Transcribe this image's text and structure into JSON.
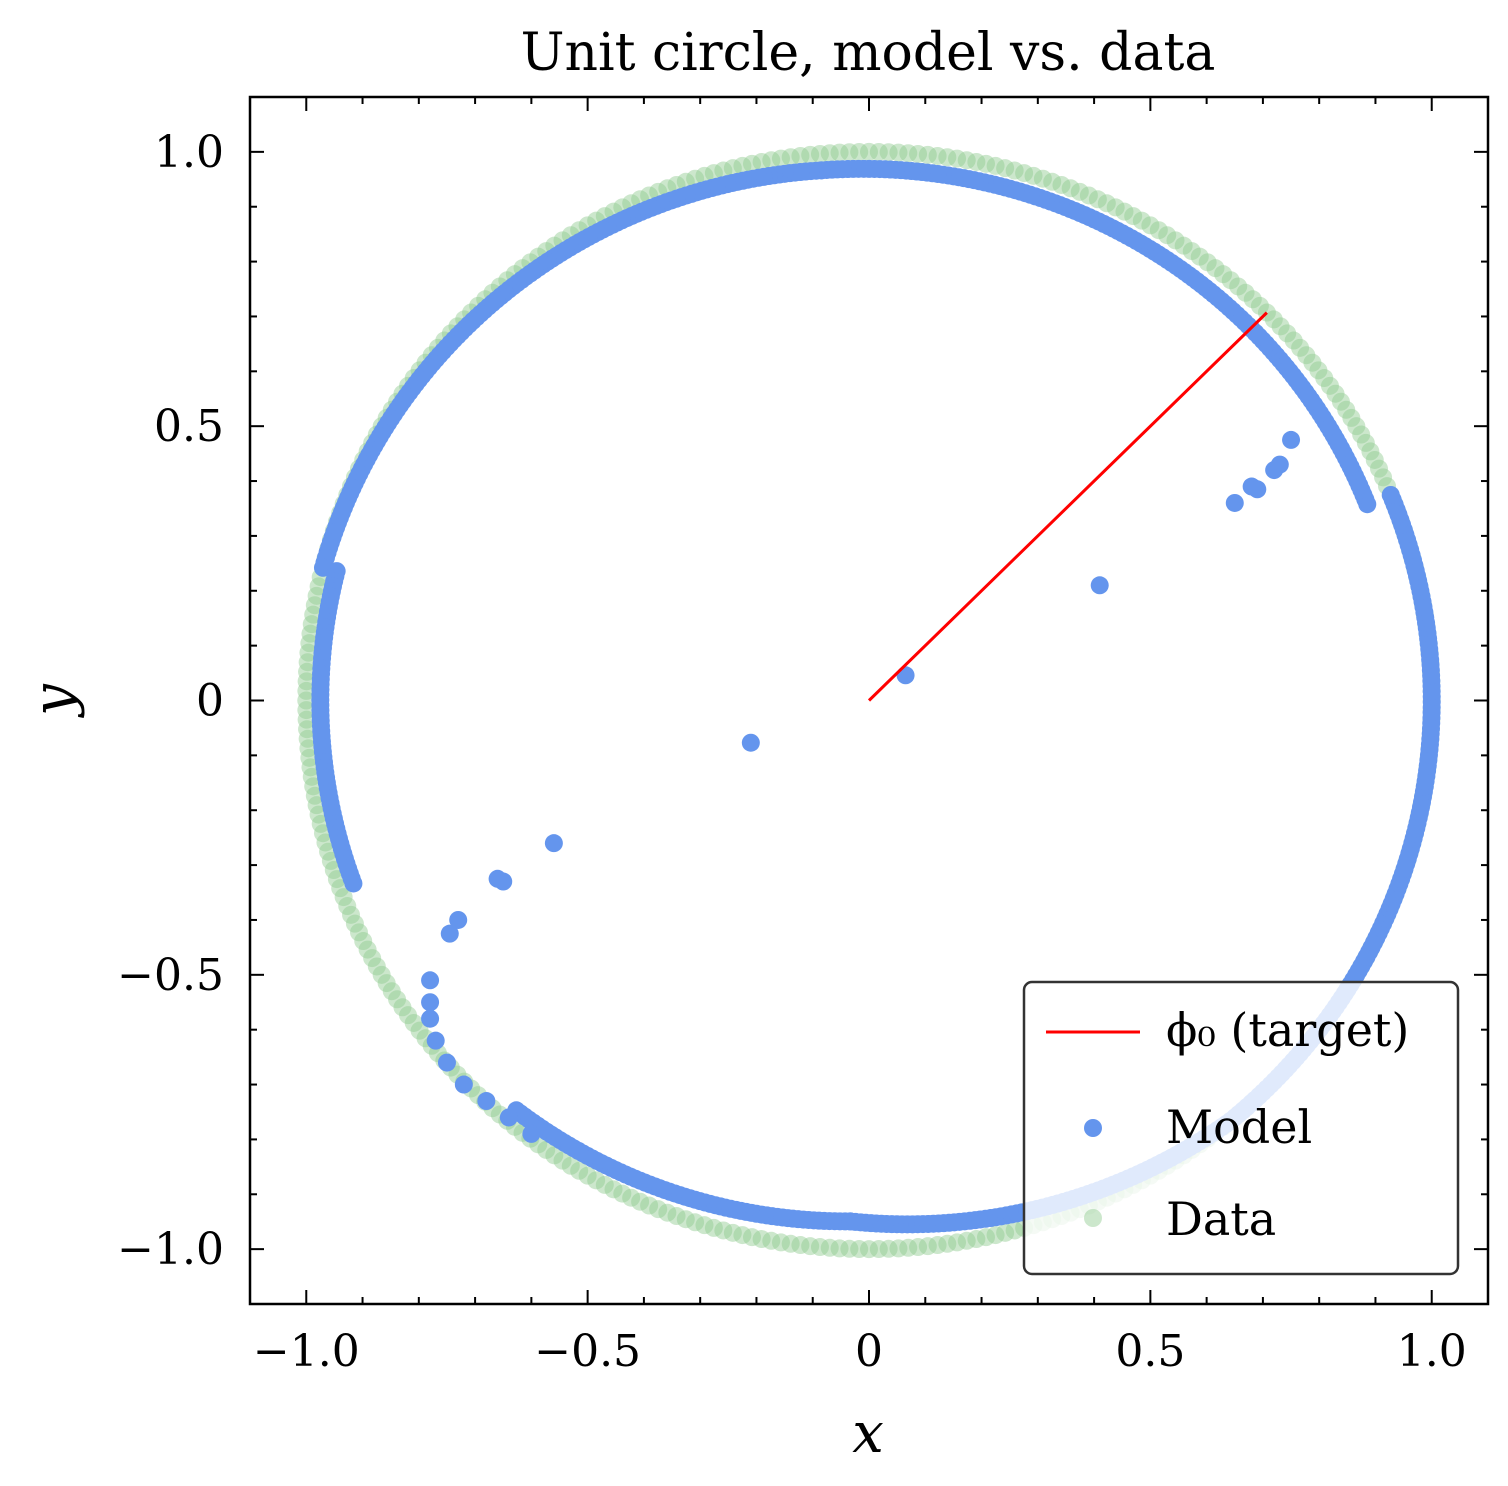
{
  "chart_data": {
    "type": "scatter",
    "title": "Unit circle, model vs. data",
    "xlabel": "x",
    "ylabel": "y",
    "xlim": [
      -1.1,
      1.1
    ],
    "ylim": [
      -1.1,
      1.1
    ],
    "xticks": [
      -1.0,
      -0.5,
      0,
      0.5,
      1.0
    ],
    "xtick_labels": [
      "−1.0",
      "−0.5",
      "0",
      "0.5",
      "1.0"
    ],
    "yticks": [
      -1.0,
      -0.5,
      0,
      0.5,
      1.0
    ],
    "ytick_labels": [
      "−1.0",
      "−0.5",
      "0",
      "0.5",
      "1.0"
    ],
    "grid": false,
    "legend_position": "bottom-right",
    "series": [
      {
        "name": "ϕ₀ (target)",
        "kind": "line",
        "color": "#ff0000",
        "x": [
          0,
          0.707
        ],
        "y": [
          0,
          0.707
        ]
      },
      {
        "name": "Model",
        "kind": "scatter",
        "color": "#6495ed",
        "points": [
          [
            0.065,
            0.046
          ],
          [
            0.41,
            0.21
          ],
          [
            -0.21,
            -0.077
          ],
          [
            -0.56,
            -0.26
          ],
          [
            -0.65,
            -0.33
          ],
          [
            -0.66,
            -0.325
          ],
          [
            -0.73,
            -0.4
          ],
          [
            -0.745,
            -0.425
          ],
          [
            0.65,
            0.36
          ],
          [
            0.68,
            0.39
          ],
          [
            0.69,
            0.385
          ],
          [
            0.72,
            0.42
          ],
          [
            0.73,
            0.43
          ],
          [
            0.75,
            0.475
          ],
          [
            -0.78,
            -0.51
          ],
          [
            -0.78,
            -0.55
          ],
          [
            -0.78,
            -0.58
          ],
          [
            -0.77,
            -0.62
          ],
          [
            -0.75,
            -0.66
          ],
          [
            -0.72,
            -0.7
          ],
          [
            -0.68,
            -0.73
          ],
          [
            -0.64,
            -0.76
          ],
          [
            -0.6,
            -0.79
          ]
        ],
        "arcs": [
          {
            "angle_from": 22,
            "angle_to": 95,
            "radius_start": 0.955,
            "radius_end": 0.97
          },
          {
            "angle_from": 95,
            "angle_to": 166,
            "radius_start": 0.97,
            "radius_end": 1.0
          },
          {
            "angle_from": 166,
            "angle_to": 200,
            "radius": 0.975
          },
          {
            "angle_from": 230,
            "angle_to": 268,
            "radius_start": 0.975,
            "radius_end": 0.95
          },
          {
            "angle_from": 268,
            "angle_to": 310,
            "radius_start": 0.95,
            "radius_end": 1.0
          },
          {
            "angle_from": 310,
            "angle_to": 382,
            "radius": 1.0
          }
        ]
      },
      {
        "name": "Data",
        "kind": "scatter",
        "color": "#8fc98f",
        "opacity": 0.45,
        "circle": {
          "center": [
            0,
            0
          ],
          "radius": 1.0
        }
      }
    ]
  }
}
